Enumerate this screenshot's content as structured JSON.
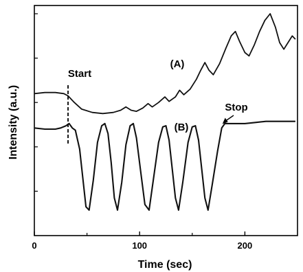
{
  "chart_data": {
    "type": "line",
    "title": "",
    "xlabel": "Time (sec)",
    "ylabel": "Intensity (a.u.)",
    "xlim": [
      0,
      250
    ],
    "ylim": [
      0,
      1
    ],
    "grid": false,
    "x_ticks": [
      0,
      100,
      200
    ],
    "y_ticks_unlabeled": [
      0.2,
      0.4,
      0.6,
      0.8,
      1.0
    ],
    "annotations": {
      "start": "Start",
      "stop": "Stop",
      "start_x": 32,
      "stop_x": 178
    },
    "series": [
      {
        "name": "(A)",
        "points": [
          [
            0,
            0.64
          ],
          [
            10,
            0.645
          ],
          [
            20,
            0.645
          ],
          [
            28,
            0.64
          ],
          [
            32,
            0.63
          ],
          [
            38,
            0.6
          ],
          [
            45,
            0.57
          ],
          [
            55,
            0.555
          ],
          [
            65,
            0.55
          ],
          [
            75,
            0.555
          ],
          [
            82,
            0.565
          ],
          [
            87,
            0.58
          ],
          [
            92,
            0.565
          ],
          [
            97,
            0.56
          ],
          [
            103,
            0.575
          ],
          [
            108,
            0.595
          ],
          [
            112,
            0.58
          ],
          [
            118,
            0.6
          ],
          [
            124,
            0.625
          ],
          [
            128,
            0.605
          ],
          [
            134,
            0.625
          ],
          [
            138,
            0.655
          ],
          [
            142,
            0.635
          ],
          [
            148,
            0.66
          ],
          [
            154,
            0.705
          ],
          [
            158,
            0.745
          ],
          [
            162,
            0.78
          ],
          [
            166,
            0.745
          ],
          [
            170,
            0.725
          ],
          [
            176,
            0.775
          ],
          [
            182,
            0.845
          ],
          [
            187,
            0.9
          ],
          [
            191,
            0.92
          ],
          [
            195,
            0.875
          ],
          [
            200,
            0.825
          ],
          [
            204,
            0.81
          ],
          [
            209,
            0.86
          ],
          [
            214,
            0.92
          ],
          [
            219,
            0.97
          ],
          [
            224,
            1.0
          ],
          [
            229,
            0.94
          ],
          [
            233,
            0.87
          ],
          [
            237,
            0.84
          ],
          [
            241,
            0.87
          ],
          [
            245,
            0.9
          ],
          [
            248,
            0.885
          ]
        ]
      },
      {
        "name": "(B)",
        "points": [
          [
            0,
            0.485
          ],
          [
            10,
            0.48
          ],
          [
            20,
            0.48
          ],
          [
            25,
            0.485
          ],
          [
            30,
            0.495
          ],
          [
            33,
            0.505
          ],
          [
            36,
            0.485
          ],
          [
            39,
            0.475
          ],
          [
            43,
            0.39
          ],
          [
            46,
            0.26
          ],
          [
            49,
            0.13
          ],
          [
            52,
            0.115
          ],
          [
            56,
            0.25
          ],
          [
            60,
            0.42
          ],
          [
            64,
            0.495
          ],
          [
            67,
            0.505
          ],
          [
            70,
            0.46
          ],
          [
            73,
            0.33
          ],
          [
            76,
            0.17
          ],
          [
            79,
            0.115
          ],
          [
            83,
            0.24
          ],
          [
            87,
            0.41
          ],
          [
            91,
            0.495
          ],
          [
            94,
            0.505
          ],
          [
            97,
            0.44
          ],
          [
            101,
            0.29
          ],
          [
            105,
            0.14
          ],
          [
            109,
            0.115
          ],
          [
            113,
            0.25
          ],
          [
            118,
            0.42
          ],
          [
            122,
            0.49
          ],
          [
            125,
            0.495
          ],
          [
            128,
            0.43
          ],
          [
            131,
            0.3
          ],
          [
            134,
            0.17
          ],
          [
            137,
            0.115
          ],
          [
            141,
            0.24
          ],
          [
            146,
            0.42
          ],
          [
            150,
            0.49
          ],
          [
            153,
            0.495
          ],
          [
            156,
            0.43
          ],
          [
            159,
            0.3
          ],
          [
            162,
            0.17
          ],
          [
            165,
            0.115
          ],
          [
            169,
            0.23
          ],
          [
            174,
            0.38
          ],
          [
            178,
            0.485
          ],
          [
            181,
            0.505
          ],
          [
            190,
            0.505
          ],
          [
            200,
            0.505
          ],
          [
            210,
            0.51
          ],
          [
            220,
            0.515
          ],
          [
            230,
            0.515
          ],
          [
            240,
            0.515
          ],
          [
            248,
            0.515
          ]
        ]
      }
    ]
  }
}
